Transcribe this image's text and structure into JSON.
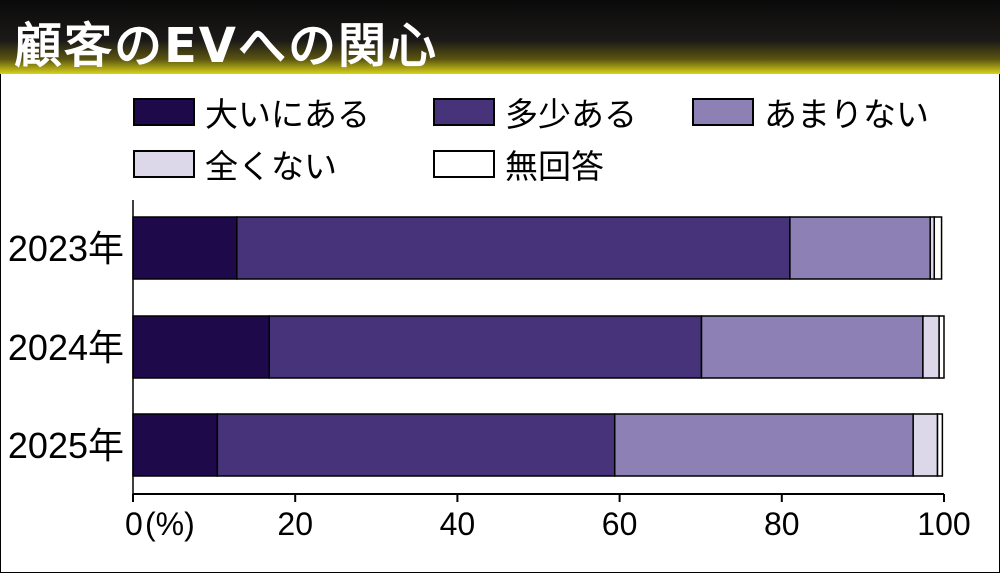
{
  "title": "顧客のEVへの関心",
  "chart_data": {
    "type": "bar",
    "orientation": "horizontal",
    "stacked": true,
    "title": "顧客のEVへの関心",
    "unit": "(%)",
    "categories": [
      "2023年",
      "2024年",
      "2025年"
    ],
    "series": [
      {
        "name": "大いにある",
        "color": "#1e0a4b",
        "values": [
          12.8,
          16.8,
          10.4
        ]
      },
      {
        "name": "多少ある",
        "color": "#46337a",
        "values": [
          68.2,
          53.3,
          49.0
        ]
      },
      {
        "name": "あまりない",
        "color": "#8c80b4",
        "values": [
          17.3,
          27.3,
          36.8
        ]
      },
      {
        "name": "全くない",
        "color": "#dcd8ea",
        "values": [
          0.5,
          2.0,
          3.0
        ]
      },
      {
        "name": "無回答",
        "color": "#ffffff",
        "values": [
          0.9,
          0.6,
          0.6
        ]
      }
    ],
    "xlim": [
      0,
      100
    ],
    "xticks": [
      "0",
      "20",
      "40",
      "60",
      "80",
      "100"
    ],
    "legend_position": "top"
  }
}
